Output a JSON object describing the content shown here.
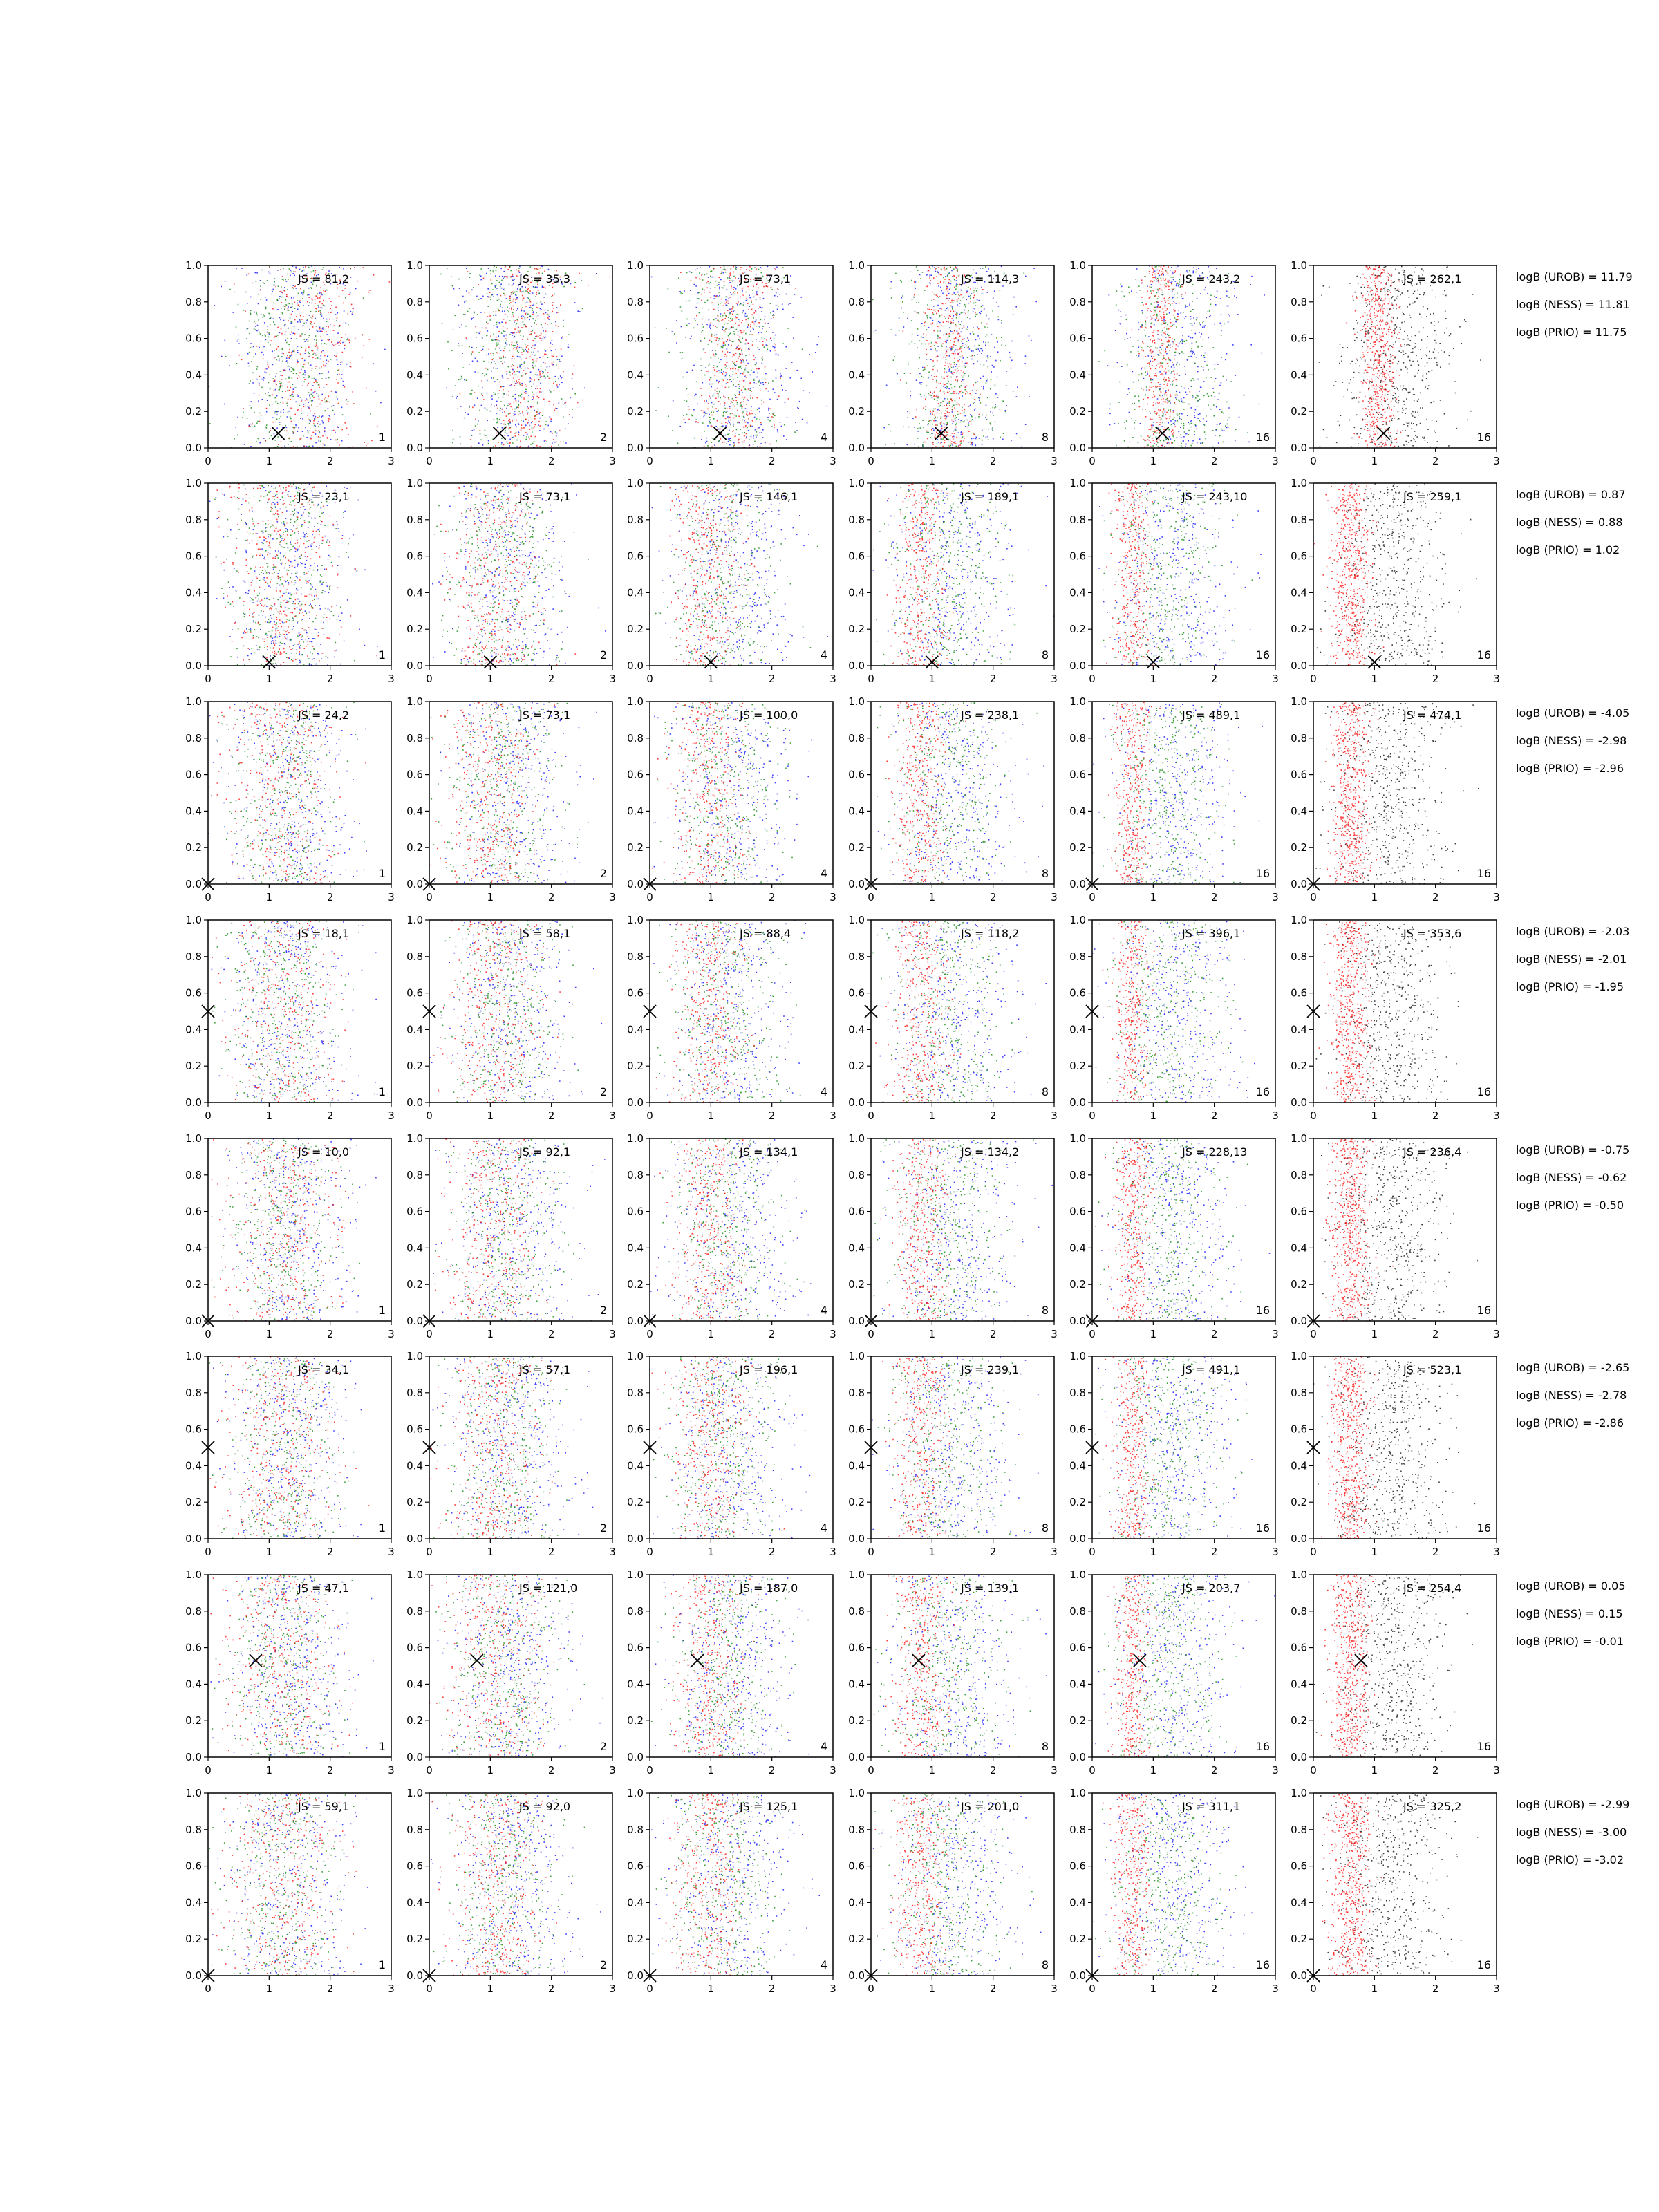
{
  "colors": {
    "series_a": "#ff0000",
    "series_b": "#0000ff",
    "series_c": "#008000",
    "series_d": "#000000",
    "marker": "#000000",
    "axes": "#000000",
    "background": "#ffffff"
  },
  "chart_data": {
    "type": "scatter",
    "layout": "grid 8 rows x 6 columns",
    "xlim": [
      0,
      3
    ],
    "ylim": [
      0,
      1
    ],
    "x_ticks": [
      "0",
      "1",
      "2",
      "3"
    ],
    "y_ticks": [
      "0.0",
      "0.2",
      "0.4",
      "0.6",
      "0.8",
      "1.0"
    ],
    "grid": false,
    "column_numbers": [
      "1",
      "2",
      "4",
      "8",
      "16",
      "16"
    ],
    "column_series": [
      [
        "series_a",
        "series_b",
        "series_c"
      ],
      [
        "series_a",
        "series_b",
        "series_c"
      ],
      [
        "series_a",
        "series_b",
        "series_c"
      ],
      [
        "series_a",
        "series_b",
        "series_c"
      ],
      [
        "series_a",
        "series_b",
        "series_c"
      ],
      [
        "series_a",
        "series_d"
      ]
    ],
    "rows": [
      {
        "marker": {
          "x": 1.15,
          "y": 0.08
        },
        "js_labels": [
          "JS = 81,2",
          "JS = 35,3",
          "JS = 73,1",
          "JS = 114,3",
          "JS = 243,2",
          "JS = 262,1"
        ],
        "logb": [
          "logB (UROB) = 11.79",
          "logB (NESS) = 11.81",
          "logB (PRIO) = 11.75"
        ]
      },
      {
        "marker": {
          "x": 1.0,
          "y": 0.02
        },
        "js_labels": [
          "JS = 23,1",
          "JS = 73,1",
          "JS = 146,1",
          "JS = 189,1",
          "JS = 243,10",
          "JS = 259,1"
        ],
        "logb": [
          "logB (UROB) = 0.87",
          "logB (NESS) = 0.88",
          "logB (PRIO) = 1.02"
        ]
      },
      {
        "marker": {
          "x": 0.0,
          "y": 0.0
        },
        "js_labels": [
          "JS = 24,2",
          "JS = 73,1",
          "JS = 100,0",
          "JS = 238,1",
          "JS = 489,1",
          "JS = 474,1"
        ],
        "logb": [
          "logB (UROB) = -4.05",
          "logB (NESS) = -2.98",
          "logB (PRIO) = -2.96"
        ]
      },
      {
        "marker": {
          "x": 0.0,
          "y": 0.5
        },
        "js_labels": [
          "JS = 18,1",
          "JS = 58,1",
          "JS = 88,4",
          "JS = 118,2",
          "JS = 396,1",
          "JS = 353,6"
        ],
        "logb": [
          "logB (UROB) = -2.03",
          "logB (NESS) = -2.01",
          "logB (PRIO) = -1.95"
        ]
      },
      {
        "marker": {
          "x": 0.0,
          "y": 0.0
        },
        "js_labels": [
          "JS = 10,0",
          "JS = 92,1",
          "JS = 134,1",
          "JS = 134,2",
          "JS = 228,13",
          "JS = 236,4"
        ],
        "logb": [
          "logB (UROB) = -0.75",
          "logB (NESS) = -0.62",
          "logB (PRIO) = -0.50"
        ]
      },
      {
        "marker": {
          "x": 0.0,
          "y": 0.5
        },
        "js_labels": [
          "JS = 34,1",
          "JS = 57,1",
          "JS = 196,1",
          "JS = 239,1",
          "JS = 491,1",
          "JS = 523,1"
        ],
        "logb": [
          "logB (UROB) = -2.65",
          "logB (NESS) = -2.78",
          "logB (PRIO) = -2.86"
        ]
      },
      {
        "marker": {
          "x": 0.78,
          "y": 0.53
        },
        "js_labels": [
          "JS = 47,1",
          "JS = 121,0",
          "JS = 187,0",
          "JS = 139,1",
          "JS = 203,7",
          "JS = 254,4"
        ],
        "logb": [
          "logB (UROB) = 0.05",
          "logB (NESS) = 0.15",
          "logB (PRIO) = -0.01"
        ]
      },
      {
        "marker": {
          "x": 0.0,
          "y": 0.0
        },
        "js_labels": [
          "JS = 59,1",
          "JS = 92,0",
          "JS = 125,1",
          "JS = 201,0",
          "JS = 311,1",
          "JS = 325,2"
        ],
        "logb": [
          "logB (UROB) = -2.99",
          "logB (NESS) = -3.00",
          "logB (PRIO) = -3.02"
        ]
      }
    ]
  }
}
